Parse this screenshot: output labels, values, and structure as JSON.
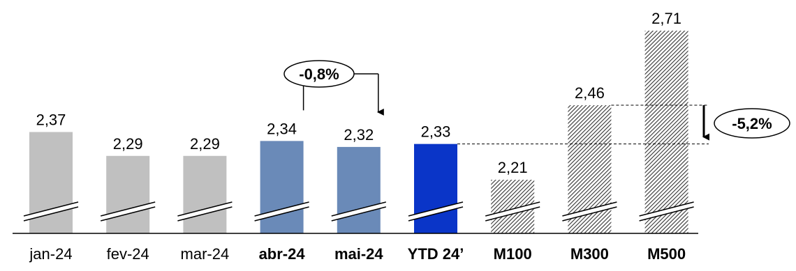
{
  "chart_data": {
    "type": "bar",
    "title": "",
    "xlabel": "",
    "ylabel": "",
    "categories": [
      "jan-24",
      "fev-24",
      "mar-24",
      "abr-24",
      "mai-24",
      "YTD 24’",
      "M100",
      "M300",
      "M500"
    ],
    "values": [
      2.37,
      2.29,
      2.29,
      2.34,
      2.32,
      2.33,
      2.21,
      2.46,
      2.71
    ],
    "value_labels": [
      "2,37",
      "2,29",
      "2,29",
      "2,34",
      "2,32",
      "2,33",
      "2,21",
      "2,46",
      "2,71"
    ],
    "bold_categories": [
      "abr-24",
      "mai-24",
      "YTD 24’",
      "M100",
      "M300",
      "M500"
    ],
    "bar_styles": [
      "gray",
      "gray",
      "gray",
      "steel-blue",
      "steel-blue",
      "blue",
      "hatched",
      "hatched",
      "hatched"
    ],
    "colors": {
      "gray": "#c0c0c0",
      "steel-blue": "#6a8ab8",
      "blue": "#0a35c8",
      "hatch": "#333333",
      "axis": "#000000"
    },
    "axis_break": true,
    "grid": false,
    "legend": "none",
    "annotations": [
      {
        "text": "-0,8%",
        "from": "abr-24",
        "to": "mai-24"
      },
      {
        "text": "-5,2%",
        "from": "M300",
        "to": "YTD 24’"
      }
    ]
  }
}
